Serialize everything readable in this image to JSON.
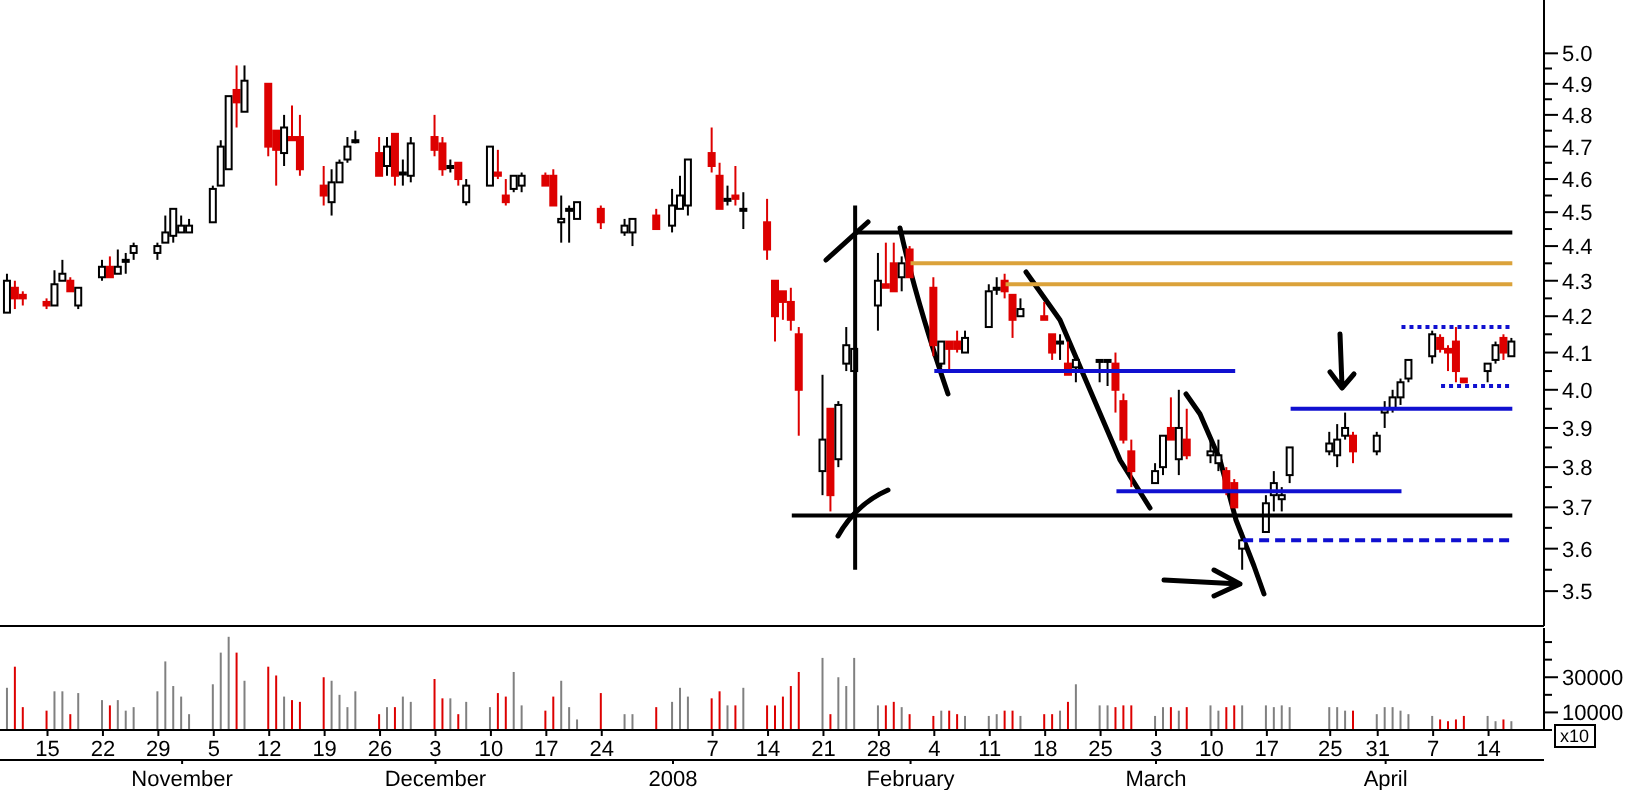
{
  "chart_data": [
    {
      "type": "candlestick",
      "log": "y",
      "tick_labels": "y",
      "ylim": [
        3.42,
        5.18
      ],
      "xlim": [
        "2007-10-09",
        "2008-04-21"
      ],
      "yticks": [
        {
          "value": 3.5,
          "label": "3.5"
        },
        {
          "value": 3.55,
          "label": null
        },
        {
          "value": 3.6,
          "label": "3.6"
        },
        {
          "value": 3.65,
          "label": null
        },
        {
          "value": 3.7,
          "label": "3.7"
        },
        {
          "value": 3.75,
          "label": null
        },
        {
          "value": 3.8,
          "label": "3.8"
        },
        {
          "value": 3.85,
          "label": null
        },
        {
          "value": 3.9,
          "label": "3.9"
        },
        {
          "value": 3.95,
          "label": null
        },
        {
          "value": 4.0,
          "label": "4.0"
        },
        {
          "value": 4.05,
          "label": null
        },
        {
          "value": 4.1,
          "label": "4.1"
        },
        {
          "value": 4.15,
          "label": null
        },
        {
          "value": 4.2,
          "label": "4.2"
        },
        {
          "value": 4.25,
          "label": null
        },
        {
          "value": 4.3,
          "label": "4.3"
        },
        {
          "value": 4.35,
          "label": null
        },
        {
          "value": 4.4,
          "label": "4.4"
        },
        {
          "value": 4.45,
          "label": null
        },
        {
          "value": 4.5,
          "label": "4.5"
        },
        {
          "value": 4.55,
          "label": null
        },
        {
          "value": 4.6,
          "label": "4.6"
        },
        {
          "value": 4.65,
          "label": null
        },
        {
          "value": 4.7,
          "label": "4.7"
        },
        {
          "value": 4.75,
          "label": null
        },
        {
          "value": 4.8,
          "label": "4.8"
        },
        {
          "value": 4.85,
          "label": null
        },
        {
          "value": 4.9,
          "label": "4.9"
        },
        {
          "value": 4.95,
          "label": null
        },
        {
          "value": 5.0,
          "label": "5.0"
        }
      ],
      "x": [
        "2007-10-10",
        "2007-10-11",
        "2007-10-12",
        "2007-10-15",
        "2007-10-16",
        "2007-10-17",
        "2007-10-18",
        "2007-10-19",
        "2007-10-22",
        "2007-10-23",
        "2007-10-24",
        "2007-10-25",
        "2007-10-26",
        "2007-10-29",
        "2007-10-30",
        "2007-10-31",
        "2007-11-01",
        "2007-11-02",
        "2007-11-05",
        "2007-11-06",
        "2007-11-07",
        "2007-11-08",
        "2007-11-09",
        "2007-11-12",
        "2007-11-13",
        "2007-11-14",
        "2007-11-15",
        "2007-11-16",
        "2007-11-19",
        "2007-11-20",
        "2007-11-21",
        "2007-11-22",
        "2007-11-23",
        "2007-11-26",
        "2007-11-27",
        "2007-11-28",
        "2007-11-29",
        "2007-11-30",
        "2007-12-03",
        "2007-12-04",
        "2007-12-05",
        "2007-12-06",
        "2007-12-07",
        "2007-12-10",
        "2007-12-11",
        "2007-12-12",
        "2007-12-13",
        "2007-12-14",
        "2007-12-17",
        "2007-12-18",
        "2007-12-19",
        "2007-12-20",
        "2007-12-21",
        "2007-12-24",
        "2007-12-27",
        "2007-12-28",
        "2007-12-31",
        "2008-01-02",
        "2008-01-03",
        "2008-01-04",
        "2008-01-07",
        "2008-01-08",
        "2008-01-09",
        "2008-01-10",
        "2008-01-11",
        "2008-01-14",
        "2008-01-15",
        "2008-01-16",
        "2008-01-17",
        "2008-01-18",
        "2008-01-21",
        "2008-01-22",
        "2008-01-23",
        "2008-01-24",
        "2008-01-25",
        "2008-01-28",
        "2008-01-29",
        "2008-01-30",
        "2008-01-31",
        "2008-02-01",
        "2008-02-04",
        "2008-02-05",
        "2008-02-06",
        "2008-02-07",
        "2008-02-08",
        "2008-02-11",
        "2008-02-12",
        "2008-02-13",
        "2008-02-14",
        "2008-02-15",
        "2008-02-18",
        "2008-02-19",
        "2008-02-20",
        "2008-02-21",
        "2008-02-22",
        "2008-02-25",
        "2008-02-26",
        "2008-02-27",
        "2008-02-28",
        "2008-02-29",
        "2008-03-03",
        "2008-03-04",
        "2008-03-05",
        "2008-03-06",
        "2008-03-07",
        "2008-03-10",
        "2008-03-11",
        "2008-03-12",
        "2008-03-13",
        "2008-03-14",
        "2008-03-17",
        "2008-03-18",
        "2008-03-19",
        "2008-03-20",
        "2008-03-25",
        "2008-03-26",
        "2008-03-27",
        "2008-03-28",
        "2008-03-31",
        "2008-04-01",
        "2008-04-02",
        "2008-04-03",
        "2008-04-04",
        "2008-04-07",
        "2008-04-08",
        "2008-04-09",
        "2008-04-10",
        "2008-04-11",
        "2008-04-14",
        "2008-04-15",
        "2008-04-16",
        "2008-04-17"
      ],
      "ohlc": [
        [
          4.21,
          4.32,
          4.21,
          4.3
        ],
        [
          4.28,
          4.3,
          4.22,
          4.25
        ],
        [
          4.26,
          4.27,
          4.23,
          4.25
        ],
        [
          4.24,
          4.25,
          4.22,
          4.23
        ],
        [
          4.23,
          4.33,
          4.23,
          4.29
        ],
        [
          4.3,
          4.36,
          4.3,
          4.32
        ],
        [
          4.3,
          4.31,
          4.27,
          4.27
        ],
        [
          4.23,
          4.28,
          4.22,
          4.28
        ],
        [
          4.31,
          4.36,
          4.3,
          4.34
        ],
        [
          4.34,
          4.37,
          4.31,
          4.31
        ],
        [
          4.32,
          4.39,
          4.32,
          4.34
        ],
        [
          4.36,
          4.38,
          4.32,
          4.36
        ],
        [
          4.38,
          4.41,
          4.36,
          4.4
        ],
        [
          4.38,
          4.41,
          4.36,
          4.4
        ],
        [
          4.41,
          4.49,
          4.41,
          4.44
        ],
        [
          4.43,
          4.51,
          4.41,
          4.51
        ],
        [
          4.44,
          4.49,
          4.44,
          4.46
        ],
        [
          4.44,
          4.48,
          4.44,
          4.46
        ],
        [
          4.47,
          4.58,
          4.47,
          4.57
        ],
        [
          4.58,
          4.72,
          4.58,
          4.7
        ],
        [
          4.63,
          4.86,
          4.63,
          4.86
        ],
        [
          4.88,
          4.96,
          4.76,
          4.84
        ],
        [
          4.81,
          4.96,
          4.81,
          4.91
        ],
        [
          4.9,
          4.9,
          4.67,
          4.7
        ],
        [
          4.75,
          4.75,
          4.58,
          4.69
        ],
        [
          4.68,
          4.8,
          4.64,
          4.76
        ],
        [
          4.73,
          4.83,
          4.72,
          4.72
        ],
        [
          4.73,
          4.8,
          4.61,
          4.63
        ],
        [
          4.58,
          4.64,
          4.52,
          4.55
        ],
        [
          4.53,
          4.63,
          4.49,
          4.59
        ],
        [
          4.59,
          4.66,
          4.59,
          4.65
        ],
        [
          4.66,
          4.73,
          4.65,
          4.7
        ],
        [
          4.72,
          4.75,
          4.71,
          4.72
        ],
        [
          4.68,
          4.73,
          4.61,
          4.61
        ],
        [
          4.64,
          4.73,
          4.61,
          4.7
        ],
        [
          4.74,
          4.74,
          4.58,
          4.61
        ],
        [
          4.62,
          4.66,
          4.58,
          4.62
        ],
        [
          4.61,
          4.73,
          4.59,
          4.71
        ],
        [
          4.73,
          4.8,
          4.67,
          4.69
        ],
        [
          4.71,
          4.73,
          4.61,
          4.63
        ],
        [
          4.64,
          4.66,
          4.62,
          4.64
        ],
        [
          4.65,
          4.65,
          4.58,
          4.6
        ],
        [
          4.53,
          4.6,
          4.52,
          4.58
        ],
        [
          4.58,
          4.7,
          4.58,
          4.7
        ],
        [
          4.62,
          4.69,
          4.6,
          4.61
        ],
        [
          4.55,
          4.6,
          4.52,
          4.53
        ],
        [
          4.57,
          4.61,
          4.56,
          4.61
        ],
        [
          4.58,
          4.62,
          4.56,
          4.61
        ],
        [
          4.61,
          4.62,
          4.58,
          4.58
        ],
        [
          4.61,
          4.63,
          4.52,
          4.52
        ],
        [
          4.47,
          4.55,
          4.41,
          4.48
        ],
        [
          4.51,
          4.52,
          4.41,
          4.51
        ],
        [
          4.48,
          4.53,
          4.48,
          4.53
        ],
        [
          4.51,
          4.52,
          4.45,
          4.47
        ],
        [
          4.44,
          4.48,
          4.43,
          4.46
        ],
        [
          4.44,
          4.48,
          4.4,
          4.48
        ],
        [
          4.49,
          4.51,
          4.45,
          4.45
        ],
        [
          4.46,
          4.57,
          4.44,
          4.52
        ],
        [
          4.51,
          4.61,
          4.51,
          4.55
        ],
        [
          4.52,
          4.66,
          4.49,
          4.66
        ],
        [
          4.68,
          4.76,
          4.62,
          4.64
        ],
        [
          4.61,
          4.65,
          4.51,
          4.51
        ],
        [
          4.54,
          4.58,
          4.52,
          4.54
        ],
        [
          4.55,
          4.64,
          4.52,
          4.54
        ],
        [
          4.51,
          4.56,
          4.45,
          4.51
        ],
        [
          4.47,
          4.54,
          4.36,
          4.39
        ],
        [
          4.3,
          4.3,
          4.13,
          4.2
        ],
        [
          4.27,
          4.27,
          4.19,
          4.24
        ],
        [
          4.24,
          4.28,
          4.16,
          4.19
        ],
        [
          4.15,
          4.17,
          3.88,
          4.0
        ],
        [
          3.79,
          4.04,
          3.73,
          3.87
        ],
        [
          3.95,
          3.95,
          3.69,
          3.73
        ],
        [
          3.82,
          3.97,
          3.8,
          3.96
        ],
        [
          4.07,
          4.17,
          4.05,
          4.12
        ],
        [
          4.05,
          4.11,
          4.05,
          4.11
        ],
        [
          4.23,
          4.38,
          4.16,
          4.3
        ],
        [
          4.29,
          4.41,
          4.28,
          4.28
        ],
        [
          4.35,
          4.41,
          4.27,
          4.27
        ],
        [
          4.31,
          4.37,
          4.27,
          4.35
        ],
        [
          4.39,
          4.4,
          4.31,
          4.31
        ],
        [
          4.28,
          4.31,
          4.09,
          4.12
        ],
        [
          4.07,
          4.13,
          4.06,
          4.13
        ],
        [
          4.13,
          4.13,
          4.05,
          4.11
        ],
        [
          4.13,
          4.16,
          4.1,
          4.11
        ],
        [
          4.1,
          4.16,
          4.1,
          4.14
        ],
        [
          4.17,
          4.29,
          4.17,
          4.27
        ],
        [
          4.28,
          4.31,
          4.26,
          4.28
        ],
        [
          4.3,
          4.32,
          4.25,
          4.27
        ],
        [
          4.26,
          4.26,
          4.14,
          4.19
        ],
        [
          4.2,
          4.25,
          4.2,
          4.22
        ],
        [
          4.2,
          4.24,
          4.19,
          4.19
        ],
        [
          4.15,
          4.15,
          4.08,
          4.1
        ],
        [
          4.13,
          4.15,
          4.08,
          4.13
        ],
        [
          4.07,
          4.13,
          4.04,
          4.04
        ],
        [
          4.06,
          4.09,
          4.02,
          4.08
        ],
        [
          4.08,
          4.08,
          4.02,
          4.08
        ],
        [
          4.08,
          4.08,
          4.01,
          4.08
        ],
        [
          4.07,
          4.1,
          3.94,
          4.0
        ],
        [
          3.97,
          3.99,
          3.86,
          3.87
        ],
        [
          3.84,
          3.87,
          3.75,
          3.79
        ],
        [
          3.76,
          3.81,
          3.76,
          3.79
        ],
        [
          3.8,
          3.88,
          3.78,
          3.88
        ],
        [
          3.9,
          3.98,
          3.87,
          3.87
        ],
        [
          3.82,
          4.0,
          3.78,
          3.9
        ],
        [
          3.87,
          3.95,
          3.82,
          3.83
        ],
        [
          3.83,
          3.88,
          3.81,
          3.84
        ],
        [
          3.81,
          3.87,
          3.79,
          3.83
        ],
        [
          3.79,
          3.8,
          3.73,
          3.74
        ],
        [
          3.76,
          3.77,
          3.7,
          3.7
        ],
        [
          3.6,
          3.64,
          3.55,
          3.62
        ],
        [
          3.64,
          3.73,
          3.64,
          3.71
        ],
        [
          3.73,
          3.79,
          3.69,
          3.76
        ],
        [
          3.72,
          3.75,
          3.69,
          3.73
        ],
        [
          3.78,
          3.85,
          3.76,
          3.85
        ],
        [
          3.84,
          3.89,
          3.83,
          3.86
        ],
        [
          3.83,
          3.91,
          3.8,
          3.87
        ],
        [
          3.88,
          3.94,
          3.87,
          3.9
        ],
        [
          3.88,
          3.89,
          3.81,
          3.84
        ],
        [
          3.84,
          3.89,
          3.83,
          3.88
        ],
        [
          3.94,
          3.97,
          3.9,
          3.95
        ],
        [
          3.95,
          4.0,
          3.94,
          3.98
        ],
        [
          3.98,
          4.03,
          3.96,
          4.02
        ],
        [
          4.03,
          4.08,
          4.02,
          4.08
        ],
        [
          4.09,
          4.16,
          4.07,
          4.15
        ],
        [
          4.14,
          4.15,
          4.1,
          4.11
        ],
        [
          4.11,
          4.12,
          4.05,
          4.1
        ],
        [
          4.13,
          4.17,
          4.02,
          4.05
        ],
        [
          4.03,
          4.03,
          4.02,
          4.02
        ],
        [
          4.05,
          4.07,
          4.02,
          4.07
        ],
        [
          4.08,
          4.13,
          4.07,
          4.12
        ],
        [
          4.14,
          4.15,
          4.08,
          4.1
        ],
        [
          4.09,
          4.14,
          4.09,
          4.13
        ]
      ],
      "colors": [
        "#ffffff",
        "#dd0000",
        "#dd0000",
        "#dd0000",
        "#ffffff",
        "#ffffff",
        "#dd0000",
        "#ffffff",
        "#ffffff",
        "#dd0000",
        "#ffffff",
        "#ffffff",
        "#ffffff",
        "#ffffff",
        "#ffffff",
        "#ffffff",
        "#ffffff",
        "#ffffff",
        "#ffffff",
        "#ffffff",
        "#ffffff",
        "#dd0000",
        "#ffffff",
        "#dd0000",
        "#dd0000",
        "#ffffff",
        "#dd0000",
        "#dd0000",
        "#dd0000",
        "#ffffff",
        "#ffffff",
        "#ffffff",
        "#ffffff",
        "#dd0000",
        "#ffffff",
        "#dd0000",
        "#ffffff",
        "#ffffff",
        "#dd0000",
        "#dd0000",
        "#ffffff",
        "#dd0000",
        "#ffffff",
        "#ffffff",
        "#dd0000",
        "#dd0000",
        "#ffffff",
        "#ffffff",
        "#dd0000",
        "#dd0000",
        "#ffffff",
        "#ffffff",
        "#ffffff",
        "#dd0000",
        "#ffffff",
        "#ffffff",
        "#dd0000",
        "#ffffff",
        "#ffffff",
        "#ffffff",
        "#dd0000",
        "#dd0000",
        "#ffffff",
        "#dd0000",
        "#ffffff",
        "#dd0000",
        "#dd0000",
        "#dd0000",
        "#dd0000",
        "#dd0000",
        "#ffffff",
        "#dd0000",
        "#ffffff",
        "#ffffff",
        "#ffffff",
        "#ffffff",
        "#dd0000",
        "#dd0000",
        "#ffffff",
        "#dd0000",
        "#dd0000",
        "#ffffff",
        "#dd0000",
        "#dd0000",
        "#ffffff",
        "#ffffff",
        "#ffffff",
        "#dd0000",
        "#dd0000",
        "#ffffff",
        "#dd0000",
        "#dd0000",
        "#ffffff",
        "#dd0000",
        "#ffffff",
        "#ffffff",
        "#ffffff",
        "#dd0000",
        "#dd0000",
        "#dd0000",
        "#ffffff",
        "#ffffff",
        "#dd0000",
        "#ffffff",
        "#dd0000",
        "#ffffff",
        "#ffffff",
        "#dd0000",
        "#dd0000",
        "#ffffff",
        "#ffffff",
        "#ffffff",
        "#ffffff",
        "#ffffff",
        "#ffffff",
        "#ffffff",
        "#ffffff",
        "#dd0000",
        "#ffffff",
        "#ffffff",
        "#ffffff",
        "#ffffff",
        "#ffffff",
        "#ffffff",
        "#dd0000",
        "#dd0000",
        "#dd0000",
        "#dd0000",
        "#ffffff",
        "#ffffff",
        "#dd0000",
        "#ffffff"
      ],
      "series": [
        {
          "type": "line",
          "color": "#000000",
          "x": [
            "2008-01-25",
            "2008-04-17"
          ],
          "values": [
            4.44,
            4.44
          ]
        },
        {
          "type": "line",
          "color": "#000000",
          "x": [
            "2008-01-17",
            "2008-04-17"
          ],
          "values": [
            3.68,
            3.68
          ]
        },
        {
          "type": "line",
          "color": "#000000",
          "x": [
            "2008-01-25",
            "2008-01-25"
          ],
          "values": [
            4.52,
            3.55
          ]
        },
        {
          "type": "line",
          "color": "#dba23a",
          "x": [
            "2008-02-01",
            "2008-04-17"
          ],
          "values": [
            4.35,
            4.35
          ]
        },
        {
          "type": "line",
          "color": "#dba23a",
          "x": [
            "2008-02-13",
            "2008-04-17"
          ],
          "values": [
            4.29,
            4.29
          ]
        },
        {
          "type": "line",
          "color": "#1010d0",
          "x": [
            "2008-02-04",
            "2008-03-13"
          ],
          "values": [
            4.05,
            4.05
          ]
        },
        {
          "type": "line",
          "color": "#1010d0",
          "x": [
            "2008-02-27",
            "2008-04-03"
          ],
          "values": [
            3.74,
            3.74
          ]
        },
        {
          "type": "line",
          "color": "#1010d0",
          "x": [
            "2008-03-20",
            "2008-04-17"
          ],
          "values": [
            3.95,
            3.95
          ]
        },
        {
          "type": "line",
          "color": "#1010d0",
          "line_style": "dotted",
          "x": [
            "2008-04-03",
            "2008-04-17"
          ],
          "values": [
            4.17,
            4.17
          ]
        },
        {
          "type": "line",
          "color": "#1010d0",
          "line_style": "dotted",
          "x": [
            "2008-04-08",
            "2008-04-17"
          ],
          "values": [
            4.01,
            4.01
          ]
        },
        {
          "type": "line",
          "color": "#1010d0",
          "line_style": "dashed",
          "x": [
            "2008-03-14",
            "2008-04-17"
          ],
          "values": [
            3.62,
            3.62
          ]
        }
      ]
    },
    {
      "type": "bar",
      "ylim": [
        0,
        58000
      ],
      "yticks": [
        {
          "value": 0,
          "label": null
        },
        10000,
        {
          "value": 20000,
          "label": null
        },
        30000,
        {
          "value": 40000,
          "label": null
        },
        {
          "value": 50000,
          "label": null
        }
      ],
      "xlim": [
        "2007-10-09",
        "2008-04-21"
      ],
      "x2lim": [
        "2007-10-09",
        "2008-04-21"
      ],
      "annotations": [
        "x10"
      ],
      "x": [
        "2007-10-10",
        "2007-10-11",
        "2007-10-12",
        "2007-10-15",
        "2007-10-16",
        "2007-10-17",
        "2007-10-18",
        "2007-10-19",
        "2007-10-22",
        "2007-10-23",
        "2007-10-24",
        "2007-10-25",
        "2007-10-26",
        "2007-10-29",
        "2007-10-30",
        "2007-10-31",
        "2007-11-01",
        "2007-11-02",
        "2007-11-05",
        "2007-11-06",
        "2007-11-07",
        "2007-11-08",
        "2007-11-09",
        "2007-11-12",
        "2007-11-13",
        "2007-11-14",
        "2007-11-15",
        "2007-11-16",
        "2007-11-19",
        "2007-11-20",
        "2007-11-21",
        "2007-11-22",
        "2007-11-23",
        "2007-11-26",
        "2007-11-27",
        "2007-11-28",
        "2007-11-29",
        "2007-11-30",
        "2007-12-03",
        "2007-12-04",
        "2007-12-05",
        "2007-12-06",
        "2007-12-07",
        "2007-12-10",
        "2007-12-11",
        "2007-12-12",
        "2007-12-13",
        "2007-12-14",
        "2007-12-17",
        "2007-12-18",
        "2007-12-19",
        "2007-12-20",
        "2007-12-21",
        "2007-12-24",
        "2007-12-27",
        "2007-12-28",
        "2007-12-31",
        "2008-01-02",
        "2008-01-03",
        "2008-01-04",
        "2008-01-07",
        "2008-01-08",
        "2008-01-09",
        "2008-01-10",
        "2008-01-11",
        "2008-01-14",
        "2008-01-15",
        "2008-01-16",
        "2008-01-17",
        "2008-01-18",
        "2008-01-21",
        "2008-01-22",
        "2008-01-23",
        "2008-01-24",
        "2008-01-25",
        "2008-01-28",
        "2008-01-29",
        "2008-01-30",
        "2008-01-31",
        "2008-02-01",
        "2008-02-04",
        "2008-02-05",
        "2008-02-06",
        "2008-02-07",
        "2008-02-08",
        "2008-02-11",
        "2008-02-12",
        "2008-02-13",
        "2008-02-14",
        "2008-02-15",
        "2008-02-18",
        "2008-02-19",
        "2008-02-20",
        "2008-02-21",
        "2008-02-22",
        "2008-02-25",
        "2008-02-26",
        "2008-02-27",
        "2008-02-28",
        "2008-02-29",
        "2008-03-03",
        "2008-03-04",
        "2008-03-05",
        "2008-03-06",
        "2008-03-07",
        "2008-03-10",
        "2008-03-11",
        "2008-03-12",
        "2008-03-13",
        "2008-03-14",
        "2008-03-17",
        "2008-03-18",
        "2008-03-19",
        "2008-03-20",
        "2008-03-25",
        "2008-03-26",
        "2008-03-27",
        "2008-03-28",
        "2008-03-31",
        "2008-04-01",
        "2008-04-02",
        "2008-04-03",
        "2008-04-04",
        "2008-04-07",
        "2008-04-08",
        "2008-04-09",
        "2008-04-10",
        "2008-04-11",
        "2008-04-14",
        "2008-04-15",
        "2008-04-16",
        "2008-04-17"
      ],
      "values": [
        24000,
        36000,
        13000,
        11000,
        22000,
        22000,
        9000,
        21000,
        17000,
        14000,
        17000,
        11000,
        13000,
        22000,
        39000,
        25000,
        19000,
        9000,
        26000,
        44000,
        53000,
        44000,
        28000,
        36000,
        31000,
        19000,
        17000,
        16000,
        30000,
        28000,
        20000,
        13000,
        22000,
        9000,
        13000,
        13000,
        19000,
        16000,
        29000,
        18000,
        18000,
        9000,
        16000,
        13000,
        21000,
        19000,
        33000,
        14000,
        11000,
        19000,
        28000,
        13000,
        6000,
        21000,
        9000,
        9000,
        13000,
        16000,
        24000,
        19000,
        18000,
        22000,
        14000,
        14000,
        24000,
        14000,
        14000,
        19000,
        25000,
        33000,
        41000,
        9000,
        30000,
        25000,
        41000,
        14000,
        14000,
        16000,
        13000,
        9000,
        8000,
        11000,
        11000,
        9000,
        8000,
        8000,
        9000,
        11000,
        11000,
        8000,
        9000,
        9000,
        11000,
        16000,
        26000,
        14000,
        14000,
        13000,
        14000,
        14000,
        8000,
        13000,
        13000,
        11000,
        13000,
        14000,
        11000,
        13000,
        14000,
        14000,
        14000,
        13000,
        14000,
        13000,
        13000,
        13000,
        11000,
        11000,
        9000,
        13000,
        13000,
        11000,
        9000,
        8000,
        6000,
        5000,
        6000,
        8000,
        8000,
        5000,
        6000,
        5000
      ],
      "colors": [
        "#808080",
        "#dd0000",
        "#dd0000",
        "#dd0000",
        "#808080",
        "#808080",
        "#dd0000",
        "#808080",
        "#808080",
        "#dd0000",
        "#808080",
        "#808080",
        "#808080",
        "#808080",
        "#808080",
        "#808080",
        "#808080",
        "#808080",
        "#808080",
        "#808080",
        "#808080",
        "#dd0000",
        "#808080",
        "#dd0000",
        "#dd0000",
        "#808080",
        "#dd0000",
        "#dd0000",
        "#dd0000",
        "#808080",
        "#808080",
        "#808080",
        "#808080",
        "#dd0000",
        "#808080",
        "#dd0000",
        "#808080",
        "#808080",
        "#dd0000",
        "#dd0000",
        "#808080",
        "#dd0000",
        "#808080",
        "#808080",
        "#dd0000",
        "#dd0000",
        "#808080",
        "#808080",
        "#dd0000",
        "#dd0000",
        "#808080",
        "#808080",
        "#808080",
        "#dd0000",
        "#808080",
        "#808080",
        "#dd0000",
        "#808080",
        "#808080",
        "#808080",
        "#dd0000",
        "#dd0000",
        "#808080",
        "#dd0000",
        "#808080",
        "#dd0000",
        "#dd0000",
        "#dd0000",
        "#dd0000",
        "#dd0000",
        "#808080",
        "#dd0000",
        "#808080",
        "#808080",
        "#808080",
        "#808080",
        "#dd0000",
        "#dd0000",
        "#808080",
        "#dd0000",
        "#dd0000",
        "#808080",
        "#dd0000",
        "#dd0000",
        "#808080",
        "#808080",
        "#808080",
        "#dd0000",
        "#dd0000",
        "#808080",
        "#dd0000",
        "#dd0000",
        "#808080",
        "#dd0000",
        "#808080",
        "#808080",
        "#808080",
        "#dd0000",
        "#dd0000",
        "#dd0000",
        "#808080",
        "#808080",
        "#dd0000",
        "#808080",
        "#dd0000",
        "#808080",
        "#808080",
        "#dd0000",
        "#dd0000",
        "#808080",
        "#808080",
        "#808080",
        "#808080",
        "#808080",
        "#808080",
        "#808080",
        "#808080",
        "#dd0000",
        "#808080",
        "#808080",
        "#808080",
        "#808080",
        "#808080",
        "#808080",
        "#dd0000",
        "#dd0000",
        "#dd0000",
        "#dd0000",
        "#808080",
        "#808080",
        "#dd0000",
        "#808080"
      ],
      "xticks": [
        {
          "value": "2007-10-15",
          "label": "15"
        },
        {
          "value": "2007-10-22",
          "label": "22"
        },
        {
          "value": "2007-10-29",
          "label": "29"
        },
        {
          "value": "2007-11-05",
          "label": "5"
        },
        {
          "value": "2007-11-12",
          "label": "12"
        },
        {
          "value": "2007-11-19",
          "label": "19"
        },
        {
          "value": "2007-11-26",
          "label": "26"
        },
        {
          "value": "2007-12-03",
          "label": "3"
        },
        {
          "value": "2007-12-10",
          "label": "10"
        },
        {
          "value": "2007-12-17",
          "label": "17"
        },
        {
          "value": "2007-12-24",
          "label": "24"
        },
        {
          "value": "2008-01-07",
          "label": "7"
        },
        {
          "value": "2008-01-14",
          "label": "14"
        },
        {
          "value": "2008-01-21",
          "label": "21"
        },
        {
          "value": "2008-01-28",
          "label": "28"
        },
        {
          "value": "2008-02-04",
          "label": "4"
        },
        {
          "value": "2008-02-11",
          "label": "11"
        },
        {
          "value": "2008-02-18",
          "label": "18"
        },
        {
          "value": "2008-02-25",
          "label": "25"
        },
        {
          "value": "2008-03-03",
          "label": "3"
        },
        {
          "value": "2008-03-10",
          "label": "10"
        },
        {
          "value": "2008-03-17",
          "label": "17"
        },
        {
          "value": "2008-03-25",
          "label": "25"
        },
        {
          "value": "2008-03-31",
          "label": "31"
        },
        {
          "value": "2008-04-07",
          "label": "7"
        },
        {
          "value": "2008-04-14",
          "label": "14"
        }
      ],
      "x2ticks": [
        {
          "value": "2007-11-01",
          "label": "November"
        },
        {
          "value": "2007-12-03",
          "label": "December"
        },
        {
          "value": "2008-01-02",
          "label": "2008"
        },
        {
          "value": "2008-02-01",
          "label": "February"
        },
        {
          "value": "2008-03-03",
          "label": "March"
        },
        {
          "value": "2008-04-01",
          "label": "April"
        }
      ]
    }
  ]
}
